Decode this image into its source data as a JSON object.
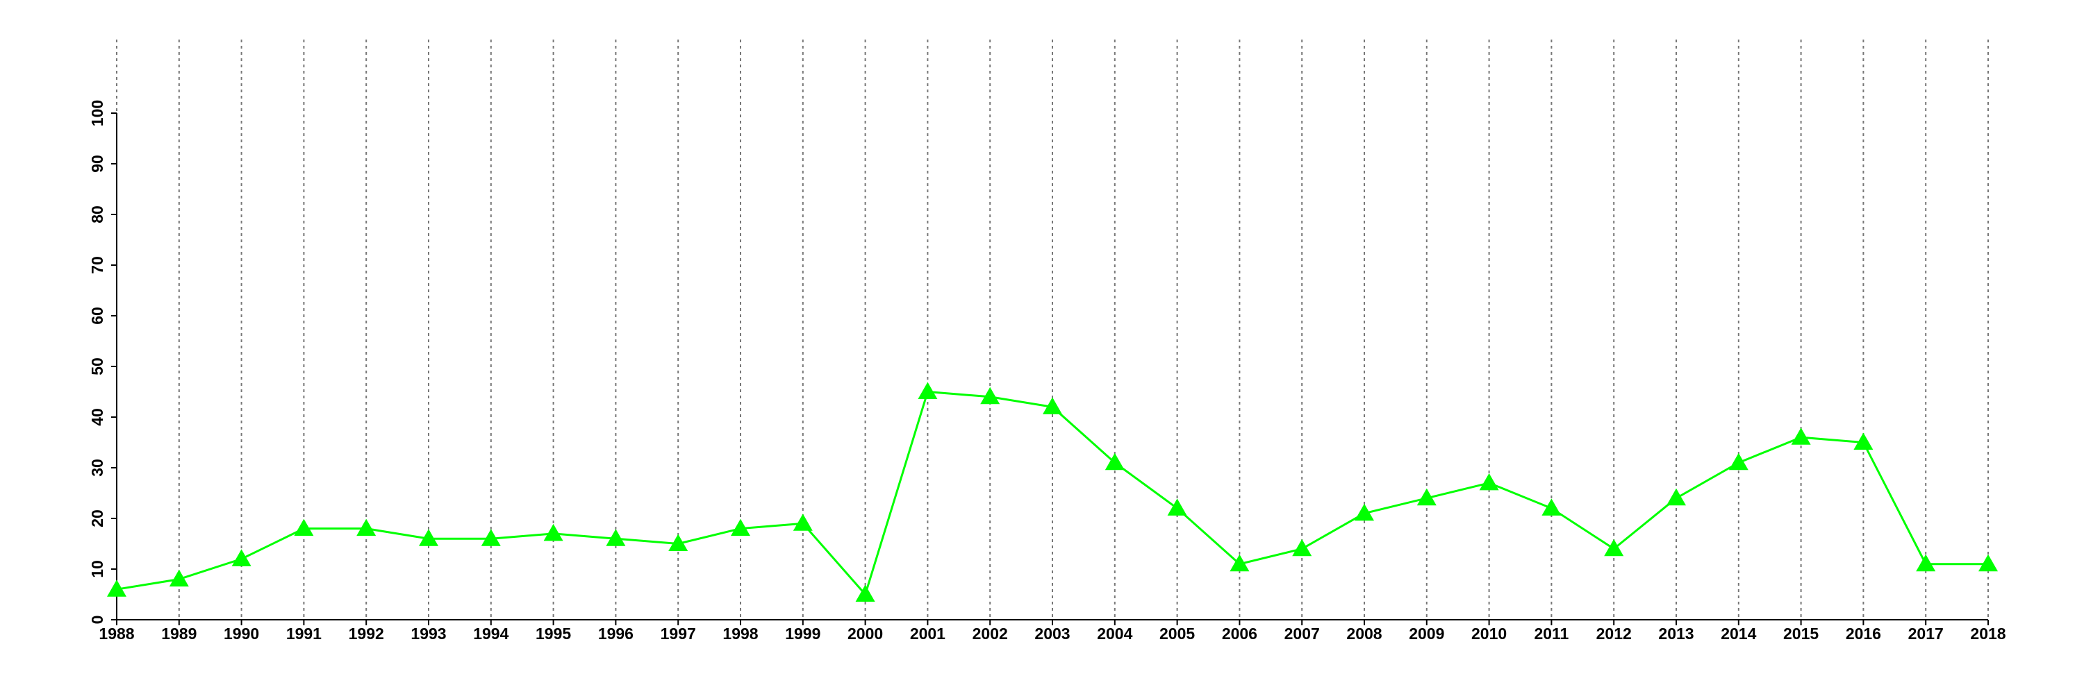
{
  "chart_data": {
    "type": "line",
    "x": [
      1988,
      1989,
      1990,
      1991,
      1992,
      1993,
      1994,
      1995,
      1996,
      1997,
      1998,
      1999,
      2000,
      2001,
      2002,
      2003,
      2004,
      2005,
      2006,
      2007,
      2008,
      2009,
      2010,
      2011,
      2012,
      2013,
      2014,
      2015,
      2016,
      2017,
      2018
    ],
    "series": [
      {
        "color": "#00ff00",
        "values": [
          6,
          8,
          12,
          18,
          18,
          16,
          16,
          17,
          16,
          15,
          18,
          19,
          5,
          45,
          44,
          42,
          31,
          22,
          11,
          14,
          21,
          24,
          27,
          22,
          14,
          24,
          31,
          36,
          35,
          11,
          11
        ]
      }
    ],
    "xlim": [
      1988,
      2018
    ],
    "xticks": [
      1988,
      1989,
      1990,
      1991,
      1992,
      1993,
      1994,
      1995,
      1996,
      1997,
      1998,
      1999,
      2000,
      2001,
      2002,
      2003,
      2004,
      2005,
      2006,
      2007,
      2008,
      2009,
      2010,
      2011,
      2012,
      2013,
      2014,
      2015,
      2016,
      2017,
      2018
    ],
    "ylim": [
      0,
      100
    ],
    "yticks": [
      0,
      10,
      20,
      30,
      40,
      50,
      60,
      70,
      80,
      90,
      100
    ],
    "grid": true
  }
}
